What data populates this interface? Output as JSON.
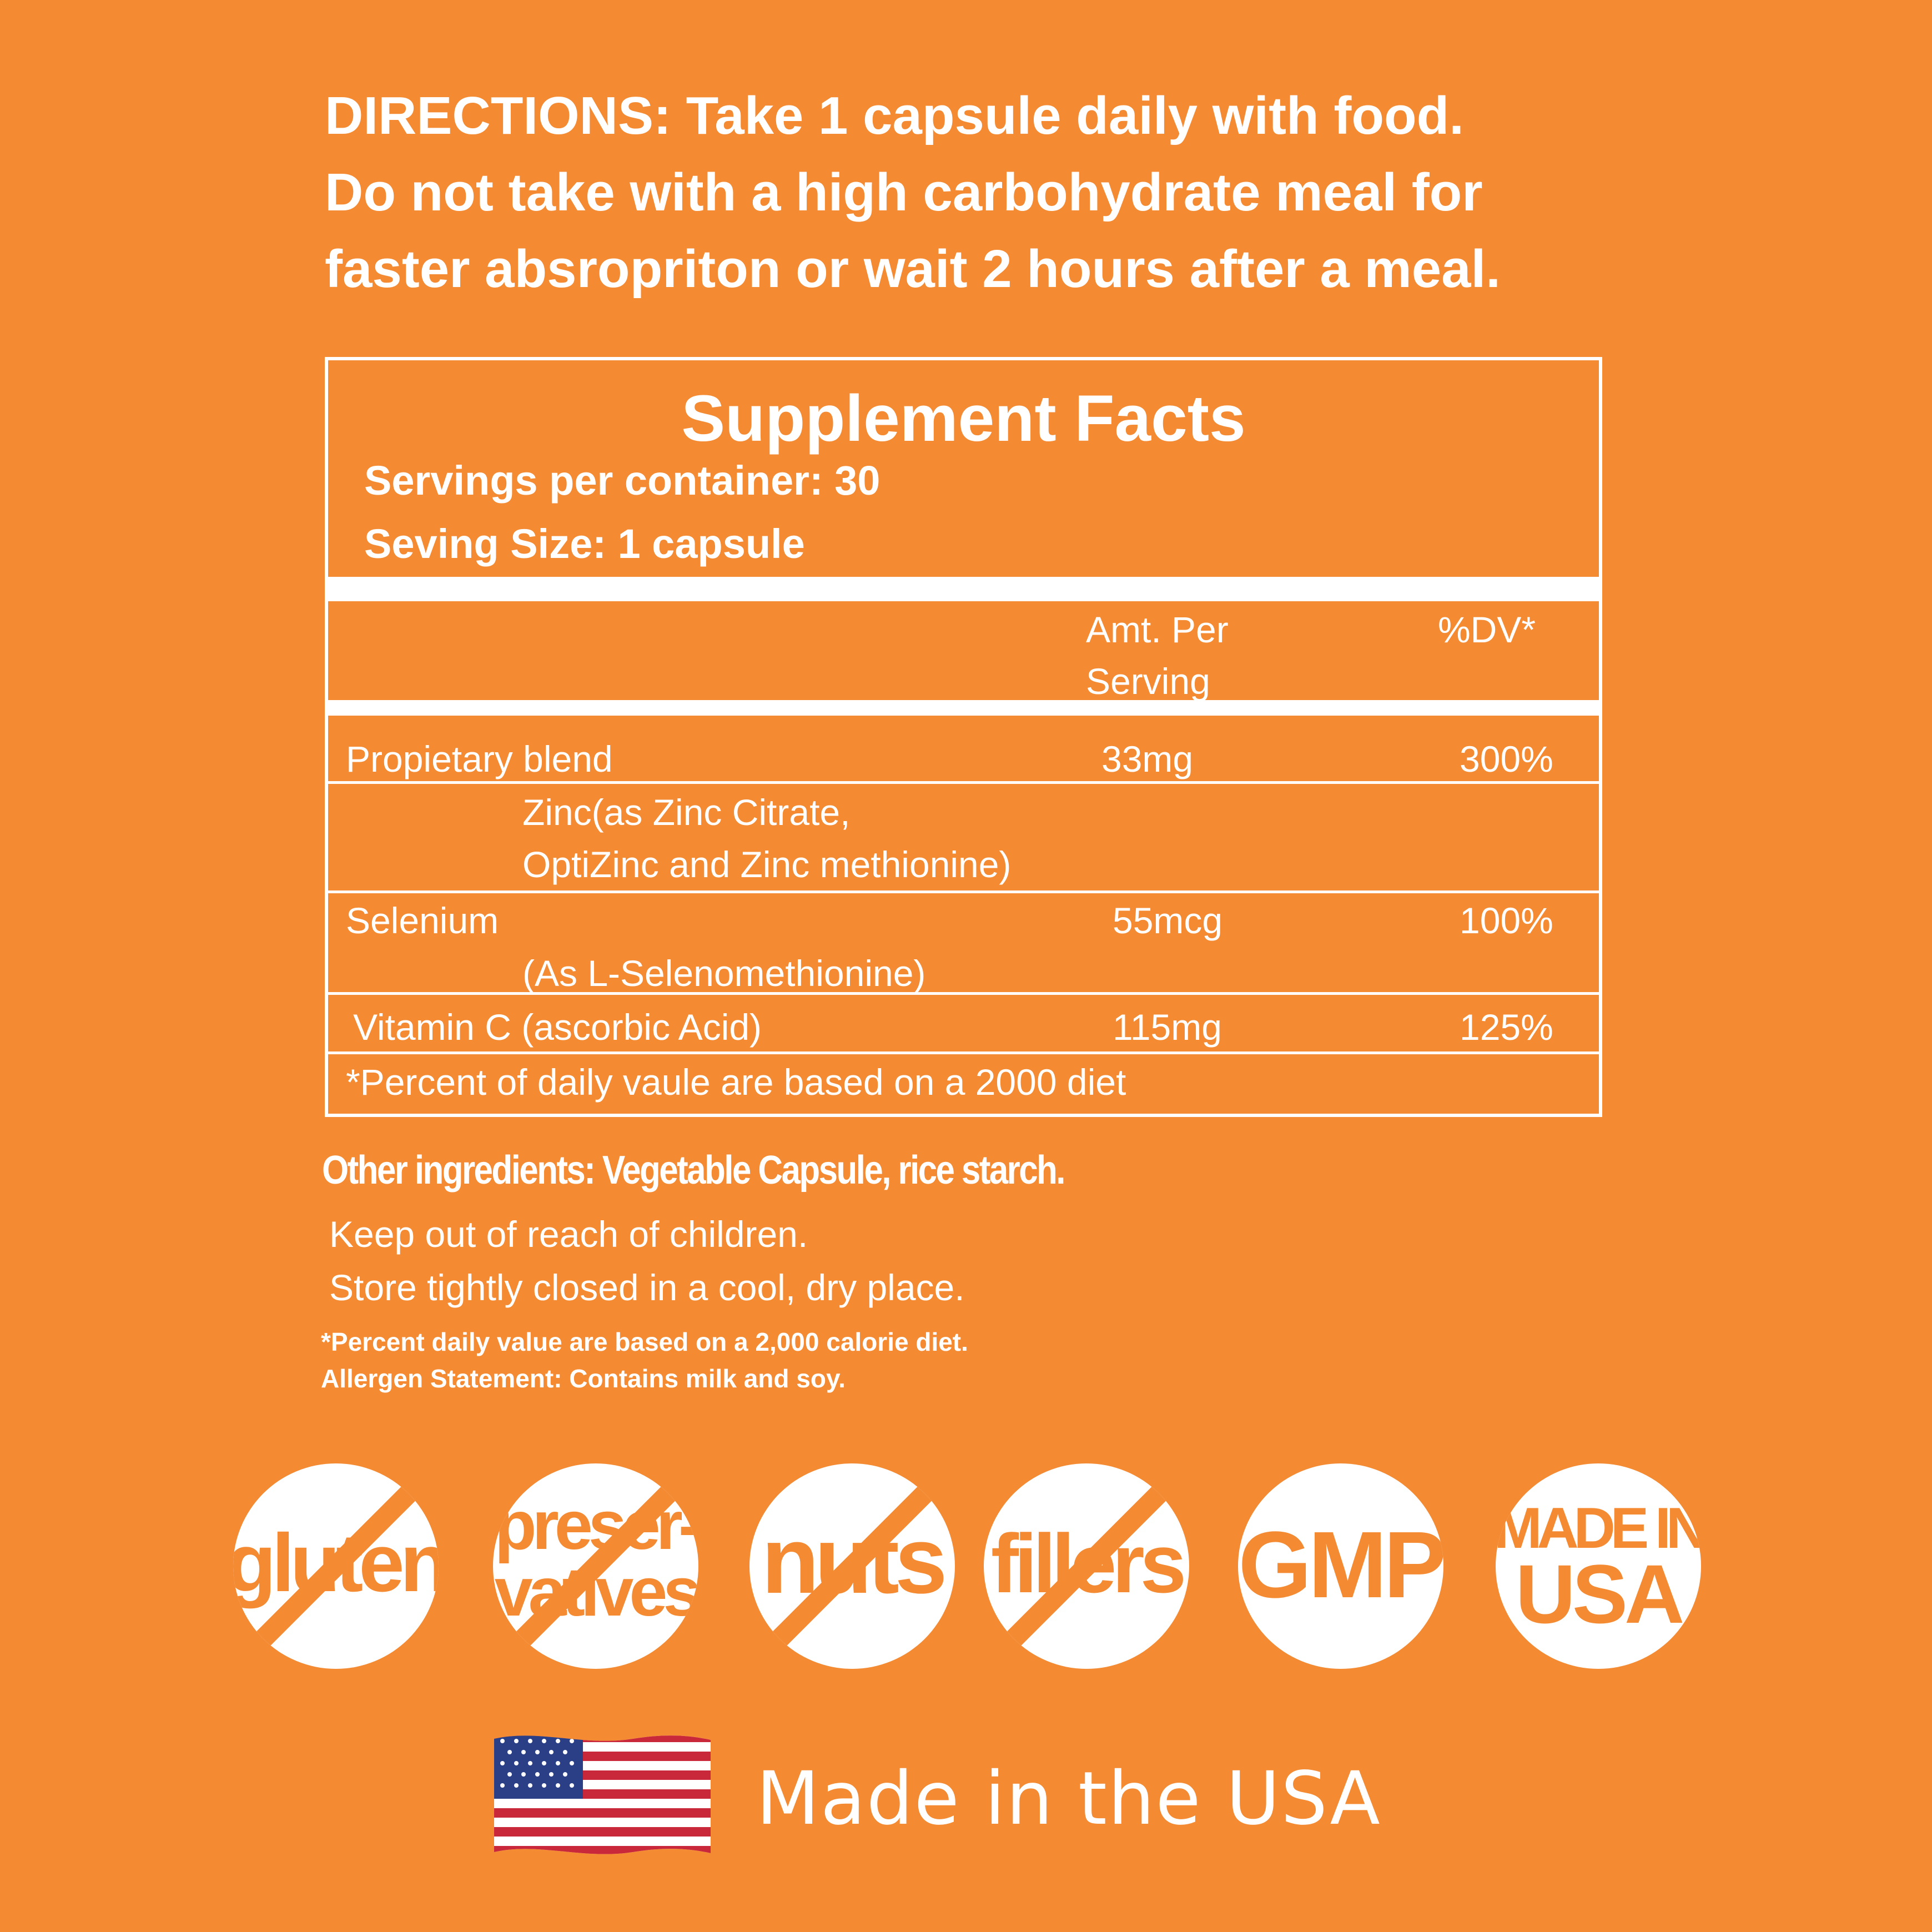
{
  "directions": {
    "line1": "DIRECTIONS:  Take 1 capsule daily with food.",
    "line2": "Do not take with a high carbohydrate meal for",
    "line3": "faster absropriton or wait 2 hours after a meal."
  },
  "facts": {
    "title": "Supplement Facts",
    "servings_per_container": "Servings per container: 30",
    "serving_size": "Seving Size: 1 capsule",
    "header": {
      "amount_line1": "Amt. Per",
      "amount_line2": "Serving",
      "dv": "%DV*"
    },
    "rows": [
      {
        "name": "Propietary blend",
        "amount": "33mg",
        "dv": "300%"
      },
      {
        "name": "Zinc(as Zinc Citrate,",
        "name2": "OptiZinc and Zinc methionine)"
      },
      {
        "name": "Selenium",
        "amount": "55mcg",
        "dv": "100%",
        "sub": "(As L-Selenomethionine)"
      },
      {
        "name": "Vitamin C (ascorbic Acid)",
        "amount": "115mg",
        "dv": "125%"
      }
    ],
    "footnote": "*Percent of daily vaule are based on a 2000 diet"
  },
  "other_ingredients": "Other ingredients:  Vegetable Capsule, rice starch.",
  "notes": {
    "keep": "Keep  out of reach of children.",
    "store": "Store tightly closed in a cool, dry place.",
    "percent": "*Percent daily value are based on a 2,000 calorie diet.",
    "allergen": "Allergen Statement: Contains milk and soy."
  },
  "badges": [
    {
      "text": "gluten",
      "crossed": true
    },
    {
      "text": "preser-",
      "text2": "vatives",
      "crossed": true
    },
    {
      "text": "nuts",
      "crossed": true
    },
    {
      "text": "fillers",
      "crossed": true
    },
    {
      "text": "GMP",
      "crossed": false
    },
    {
      "text": "MADE IN",
      "text2": "USA",
      "crossed": false
    }
  ],
  "footer": {
    "made_in": "Made in the USA",
    "flag_icon": "us-flag-icon"
  },
  "colors": {
    "background": "#f48a32",
    "foreground": "#ffffff"
  }
}
